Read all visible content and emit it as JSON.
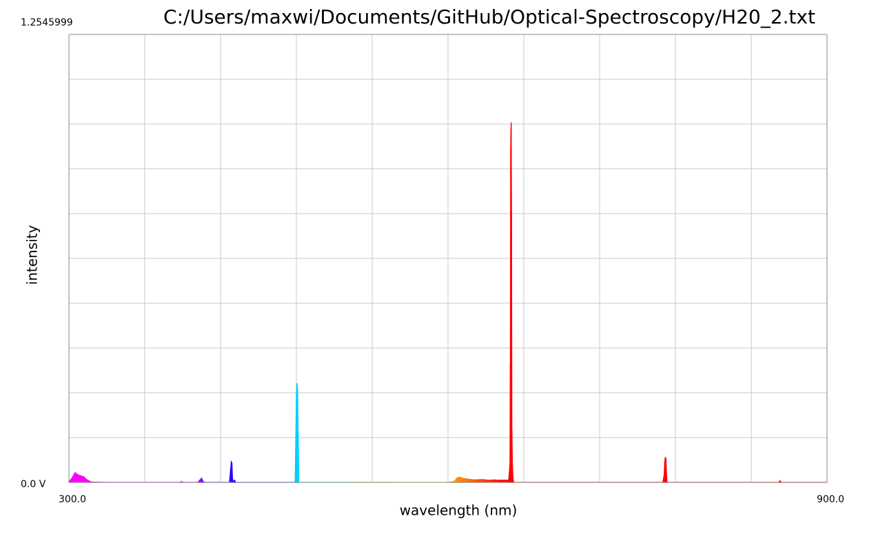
{
  "chart_data": {
    "type": "spectrum",
    "title": "C:/Users/maxwi/Documents/GitHub/Optical-Spectroscopy/H20_2.txt",
    "x_label": "wavelength (nm)",
    "y_label": "intensity",
    "x": [
      300,
      302,
      304,
      305,
      306,
      308,
      310,
      312,
      314,
      316,
      318,
      330,
      360,
      388,
      389,
      390,
      402,
      404,
      405,
      406,
      407,
      427,
      428,
      428.5,
      429,
      429.5,
      430,
      431,
      432,
      479,
      479.5,
      480,
      480.5,
      481,
      481.5,
      482,
      520,
      560,
      600,
      605,
      607,
      609,
      611,
      614,
      618,
      622,
      627,
      632,
      637,
      640,
      648,
      649,
      649.3,
      649.6,
      649.8,
      650,
      650.3,
      650.6,
      651,
      651.5,
      652,
      700,
      770,
      771,
      771.5,
      772,
      772.5,
      773,
      773.5,
      830,
      862,
      862.5,
      863,
      863.5,
      900
    ],
    "values": [
      0.002,
      0.01,
      0.022,
      0.027,
      0.024,
      0.02,
      0.018,
      0.015,
      0.008,
      0.004,
      0.001,
      0,
      0,
      0,
      0.002,
      0,
      0,
      0.008,
      0.012,
      0.004,
      0,
      0,
      0.04,
      0.058,
      0.055,
      0.01,
      0,
      0.007,
      0,
      0,
      0.12,
      0.25,
      0.278,
      0.26,
      0.13,
      0,
      0,
      0,
      0,
      0.003,
      0.012,
      0.015,
      0.012,
      0.01,
      0.008,
      0.007,
      0.008,
      0.006,
      0.007,
      0.006,
      0.006,
      0.05,
      0.33,
      0.94,
      0.99,
      1.008,
      0.76,
      0.15,
      0.05,
      0.01,
      0,
      0,
      0,
      0.02,
      0.058,
      0.071,
      0.066,
      0.017,
      0,
      0,
      0,
      0.004,
      0.003,
      0,
      0
    ],
    "xlim": [
      300,
      900
    ],
    "ylim": [
      0,
      1.2545999
    ],
    "xticks": [
      {
        "value": 300,
        "label": "300.0"
      },
      {
        "value": 900,
        "label": "900.0"
      }
    ],
    "yticks": [
      {
        "value": 0,
        "label": "0.0 V"
      },
      1.2545999
    ],
    "grid": true
  }
}
